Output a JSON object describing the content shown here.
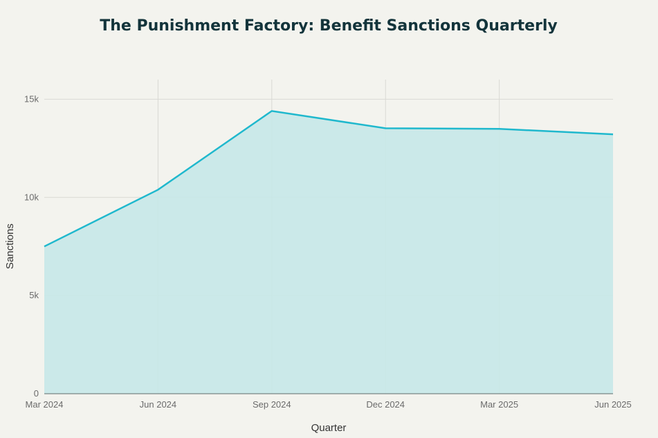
{
  "chart_data": {
    "type": "area",
    "title": "The Punishment Factory: Benefit Sanctions Quarterly",
    "xlabel": "Quarter",
    "ylabel": "Sanctions",
    "categories": [
      "Mar 2024",
      "Jun 2024",
      "Sep 2024",
      "Dec 2024",
      "Mar 2025",
      "Jun 2025"
    ],
    "series": [
      {
        "name": "Sanctions",
        "values": [
          7500,
          10390,
          14400,
          13520,
          13490,
          13210
        ]
      }
    ],
    "ylim": [
      0,
      16000
    ],
    "yticks": [
      0,
      5000,
      10000,
      15000
    ],
    "ytick_labels": [
      "0",
      "5k",
      "10k",
      "15k"
    ],
    "grid": true,
    "colors": {
      "line": "#1fb8cd",
      "fill": "#c7e8e8",
      "grid": "#d9d9d4",
      "axis": "#5f6b6b"
    }
  }
}
